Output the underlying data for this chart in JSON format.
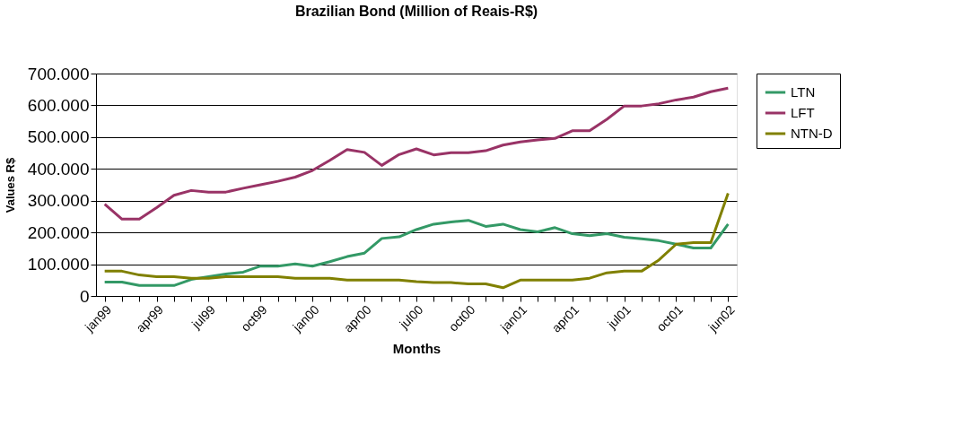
{
  "chart_data": {
    "type": "line",
    "title": "Brazilian Bond (Million of Reais-R$)",
    "xlabel": "Months",
    "ylabel": "Values R$",
    "categories": [
      "jan99",
      null,
      null,
      "apr99",
      null,
      null,
      "jul99",
      null,
      null,
      "oct99",
      null,
      null,
      "jan00",
      null,
      null,
      "apr00",
      null,
      null,
      "jul00",
      null,
      null,
      "oct00",
      null,
      null,
      "jan01",
      null,
      null,
      "apr01",
      null,
      null,
      "jul01",
      null,
      null,
      "oct01",
      null,
      null,
      "jun02"
    ],
    "series": [
      {
        "name": "LTN",
        "color": "#339966",
        "values": [
          44000,
          44000,
          33000,
          33000,
          33000,
          52000,
          61000,
          69000,
          75000,
          94000,
          94000,
          101000,
          94000,
          108000,
          124000,
          135000,
          181000,
          186000,
          209000,
          226000,
          233000,
          238000,
          219000,
          226000,
          209000,
          202000,
          215000,
          196000,
          190000,
          196000,
          185000,
          180000,
          174000,
          163000,
          151000,
          151000,
          226000
        ]
      },
      {
        "name": "LFT",
        "color": "#993366",
        "values": [
          289000,
          242000,
          242000,
          278000,
          317000,
          332000,
          327000,
          327000,
          339000,
          350000,
          361000,
          374000,
          395000,
          427000,
          461000,
          452000,
          411000,
          445000,
          463000,
          444000,
          451000,
          451000,
          457000,
          475000,
          485000,
          491000,
          496000,
          520000,
          520000,
          556000,
          598000,
          598000,
          605000,
          617000,
          626000,
          643000,
          654000
        ]
      },
      {
        "name": "NTN-D",
        "color": "#808000",
        "values": [
          78000,
          78000,
          66000,
          61000,
          61000,
          56000,
          56000,
          61000,
          61000,
          61000,
          61000,
          56000,
          56000,
          56000,
          50000,
          50000,
          50000,
          50000,
          45000,
          42000,
          42000,
          38000,
          38000,
          26000,
          50000,
          50000,
          50000,
          50000,
          56000,
          73000,
          78000,
          78000,
          113000,
          163000,
          168000,
          168000,
          323000
        ]
      }
    ],
    "ylim": [
      0,
      700000
    ],
    "yticks": [
      {
        "value": 0,
        "label": "0"
      },
      {
        "value": 100000,
        "label": "100.000"
      },
      {
        "value": 200000,
        "label": "200.000"
      },
      {
        "value": 300000,
        "label": "300.000"
      },
      {
        "value": 400000,
        "label": "400.000"
      },
      {
        "value": 500000,
        "label": "500.000"
      },
      {
        "value": 600000,
        "label": "600.000"
      },
      {
        "value": 700000,
        "label": "700.000"
      }
    ],
    "grid": "y",
    "legend": "right",
    "marker": "none",
    "line_style": "solid"
  }
}
